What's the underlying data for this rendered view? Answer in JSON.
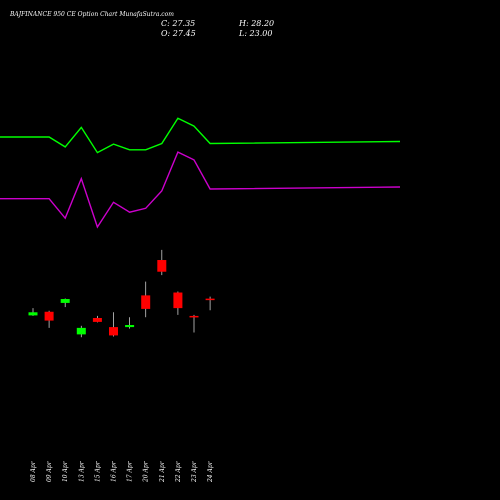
{
  "title": "BAJFINANCE 950 CE Option Chart MunafaSutra.com",
  "ohlc": {
    "c": "C: 27.35",
    "o": "O: 27.45",
    "h": "H: 28.20",
    "l": "L: 23.00"
  },
  "colors": {
    "background": "#000000",
    "upper_band": "#00ff00",
    "lower_band": "#cc00cc",
    "bull": "#00ff00",
    "bear": "#ff0000",
    "text": "#ffffff"
  },
  "chart_data": {
    "type": "candlestick",
    "categories": [
      "08 Apr",
      "09 Apr",
      "10 Apr",
      "13 Apr",
      "15 Apr",
      "16 Apr",
      "17 Apr",
      "20 Apr",
      "21 Apr",
      "22 Apr",
      "23 Apr",
      "24 Apr"
    ],
    "series": [
      {
        "type": "candlestick",
        "candles": [
          {
            "o": 21.0,
            "c": 22.2,
            "h": 23.8,
            "l": 20.8
          },
          {
            "o": 22.4,
            "c": 19.0,
            "h": 22.8,
            "l": 16.2
          },
          {
            "o": 25.8,
            "c": 27.3,
            "h": 27.5,
            "l": 24.2
          },
          {
            "o": 13.7,
            "c": 16.2,
            "h": 17.0,
            "l": 12.6
          },
          {
            "o": 20.0,
            "c": 18.5,
            "h": 20.8,
            "l": 18.3
          },
          {
            "o": 16.5,
            "c": 13.3,
            "h": 22.2,
            "l": 12.9
          },
          {
            "o": 16.5,
            "c": 17.3,
            "h": 20.3,
            "l": 15.9
          },
          {
            "o": 28.7,
            "c": 23.5,
            "h": 34.0,
            "l": 20.3
          },
          {
            "o": 42.3,
            "c": 37.8,
            "h": 46.2,
            "l": 36.5
          },
          {
            "o": 29.8,
            "c": 23.8,
            "h": 30.2,
            "l": 21.2
          },
          {
            "o": 20.8,
            "c": 20.6,
            "h": 21.2,
            "l": 14.4
          },
          {
            "o": 27.45,
            "c": 27.35,
            "h": 28.2,
            "l": 23.0
          }
        ]
      },
      {
        "type": "line",
        "color": "#00ff00",
        "values": [
          89.6,
          89.6,
          85.8,
          93.3,
          83.6,
          86.9,
          84.7,
          84.7,
          87.1,
          96.8,
          93.8,
          87.1
        ]
      },
      {
        "type": "line",
        "color": "#cc00cc",
        "values": [
          65.9,
          65.9,
          58.4,
          73.6,
          55.0,
          64.5,
          60.7,
          62.2,
          68.9,
          83.8,
          80.8,
          69.6
        ]
      }
    ]
  }
}
